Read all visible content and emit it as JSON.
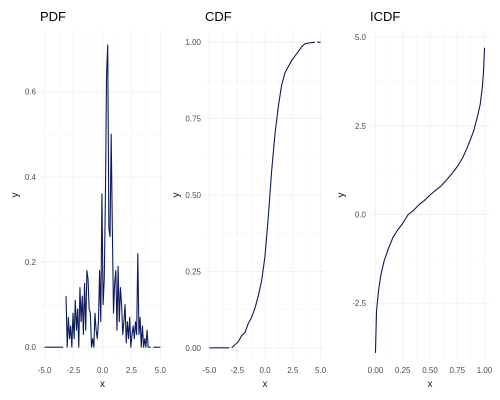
{
  "chart_data": [
    {
      "type": "line",
      "title": "PDF",
      "xlabel": "x",
      "ylabel": "y",
      "xlim": [
        -5.4,
        5.4
      ],
      "ylim": [
        -0.03,
        0.745
      ],
      "xticks": [
        -5.0,
        -2.5,
        0.0,
        2.5,
        5.0
      ],
      "xtick_labels": [
        "-5.0",
        "-2.5",
        "0.0",
        "2.5",
        "5.0"
      ],
      "yticks": [
        0.0,
        0.2,
        0.4,
        0.6
      ],
      "ytick_labels": [
        "0.0",
        "0.2",
        "0.4",
        "0.6"
      ],
      "grid": true,
      "segments": [
        {
          "x": [
            -5.0,
            -3.4
          ],
          "y": [
            0,
            0
          ]
        },
        {
          "x": [
            -3.15,
            -3.05,
            -2.95,
            -2.85,
            -2.75,
            -2.65,
            -2.55,
            -2.45,
            -2.35,
            -2.25,
            -2.15,
            -2.05,
            -1.95,
            -1.85,
            -1.75,
            -1.65,
            -1.55,
            -1.45,
            -1.35,
            -1.25,
            -1.15,
            -1.05,
            -0.95,
            -0.85,
            -0.75,
            -0.65,
            -0.55,
            -0.45,
            -0.35,
            -0.25,
            -0.15,
            -0.05,
            0.05,
            0.15,
            0.25,
            0.35,
            0.45,
            0.55,
            0.65,
            0.75,
            0.85,
            0.95,
            1.05,
            1.15,
            1.25,
            1.35,
            1.45,
            1.55,
            1.65,
            1.75,
            1.85,
            1.95,
            2.05,
            2.15,
            2.25,
            2.35,
            2.45,
            2.55,
            2.65,
            2.75,
            2.85,
            2.95,
            3.05,
            3.15,
            3.25,
            3.35,
            3.45,
            3.55,
            3.65,
            3.75,
            3.85,
            3.95,
            4.05,
            4.15
          ],
          "y": [
            0.12,
            0.0,
            0.07,
            0.02,
            0.05,
            0.0,
            0.08,
            0.02,
            0.11,
            0.04,
            0.09,
            0.0,
            0.14,
            0.06,
            0.12,
            0.03,
            0.15,
            0.04,
            0.18,
            0.16,
            0.09,
            0.08,
            0.0,
            0.02,
            0.0,
            0.08,
            0.04,
            0.02,
            0.06,
            0.18,
            0.06,
            0.36,
            0.1,
            0.16,
            0.35,
            0.64,
            0.71,
            0.28,
            0.26,
            0.5,
            0.28,
            0.08,
            0.15,
            0.18,
            0.04,
            0.19,
            0.06,
            0.14,
            0.1,
            0.03,
            0.06,
            0.1,
            0.01,
            0.06,
            0.02,
            0.07,
            0.0,
            0.03,
            0.05,
            0.02,
            0.06,
            0.03,
            0.22,
            0.03,
            0.07,
            0.0,
            0.05,
            0.0,
            0.02,
            0.0,
            0.04,
            0.0,
            0.0,
            0.0
          ]
        },
        {
          "x": [
            4.4,
            5.0
          ],
          "y": [
            0,
            0
          ]
        }
      ]
    },
    {
      "type": "line",
      "title": "CDF",
      "xlabel": "x",
      "ylabel": "y",
      "xlim": [
        -5.4,
        5.4
      ],
      "ylim": [
        -0.04,
        1.04
      ],
      "xticks": [
        -5.0,
        -2.5,
        0.0,
        2.5,
        5.0
      ],
      "xtick_labels": [
        "-5.0",
        "-2.5",
        "0.0",
        "2.5",
        "5.0"
      ],
      "yticks": [
        0.0,
        0.25,
        0.5,
        0.75,
        1.0
      ],
      "ytick_labels": [
        "0.00",
        "0.25",
        "0.50",
        "0.75",
        "1.00"
      ],
      "grid": true,
      "segments": [
        {
          "x": [
            -5.0,
            -3.2
          ],
          "y": [
            0,
            0
          ]
        },
        {
          "x": [
            -3.0,
            -2.7,
            -2.4,
            -2.1,
            -1.8,
            -1.5,
            -1.2,
            -0.9,
            -0.6,
            -0.3,
            0.0,
            0.3,
            0.6,
            0.9,
            1.2,
            1.5,
            1.8,
            2.1,
            2.4,
            2.7,
            3.0,
            3.3,
            3.6,
            3.9,
            4.2,
            4.5
          ],
          "y": [
            0.0,
            0.01,
            0.02,
            0.04,
            0.05,
            0.08,
            0.1,
            0.13,
            0.17,
            0.22,
            0.3,
            0.43,
            0.58,
            0.7,
            0.79,
            0.86,
            0.9,
            0.92,
            0.94,
            0.955,
            0.97,
            0.985,
            0.995,
            0.997,
            0.999,
            1.0
          ]
        },
        {
          "x": [
            4.7,
            5.0
          ],
          "y": [
            1.0,
            1.0
          ]
        }
      ]
    },
    {
      "type": "line",
      "title": "ICDF",
      "xlabel": "x",
      "ylabel": "y",
      "xlim": [
        -0.05,
        1.05
      ],
      "ylim": [
        -4.1,
        5.2
      ],
      "xticks": [
        0.0,
        0.25,
        0.5,
        0.75,
        1.0
      ],
      "xtick_labels": [
        "0.00",
        "0.25",
        "0.50",
        "0.75",
        "1.00"
      ],
      "yticks": [
        -2.5,
        0.0,
        2.5,
        5.0
      ],
      "ytick_labels": [
        "-2.5",
        "0.0",
        "2.5",
        "5.0"
      ],
      "grid": true,
      "segments": [
        {
          "x": [
            0.0,
            0.01,
            0.03,
            0.05,
            0.08,
            0.12,
            0.16,
            0.2,
            0.25,
            0.3,
            0.35,
            0.4,
            0.45,
            0.5,
            0.55,
            0.6,
            0.65,
            0.7,
            0.75,
            0.8,
            0.85,
            0.9,
            0.93,
            0.96,
            0.98,
            0.99,
            1.0
          ],
          "y": [
            -3.9,
            -2.7,
            -2.1,
            -1.7,
            -1.3,
            -0.95,
            -0.65,
            -0.45,
            -0.25,
            0.0,
            0.12,
            0.28,
            0.4,
            0.55,
            0.68,
            0.8,
            0.97,
            1.15,
            1.35,
            1.6,
            1.95,
            2.35,
            2.7,
            3.1,
            3.6,
            4.0,
            4.7
          ]
        }
      ]
    }
  ]
}
